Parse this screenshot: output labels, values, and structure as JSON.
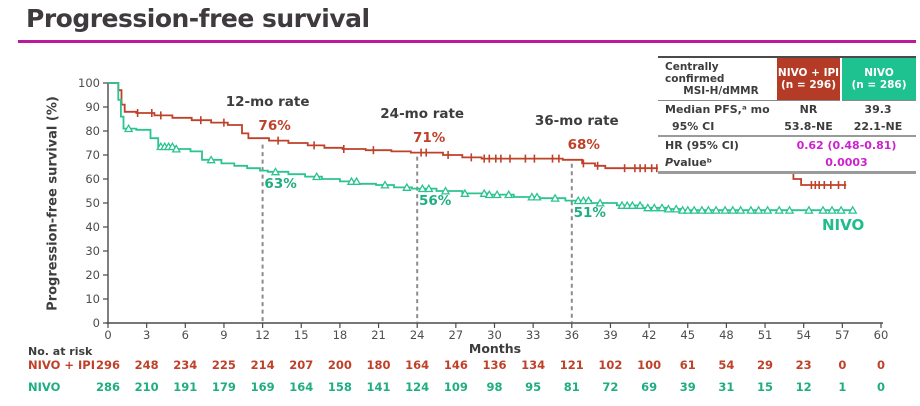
{
  "title": "Progression-free survival",
  "colors": {
    "nivo_ipi_curve": "#bf4129",
    "nivo_curve": "#2cc392",
    "nivo_ipi_header_bg": "#b43b25",
    "nivo_header_bg": "#1ec291",
    "magenta_accent": "#cc22cc",
    "title_underline": "#ba1a9b",
    "dashed_line": "#8c8c8c"
  },
  "stats_table": {
    "header": {
      "label1": "Centrally confirmed",
      "label2": "MSI-H/dMMR",
      "col1_line1": "NIVO + IPI",
      "col1_line2": "(n = 296)",
      "col2_line1": "NIVO",
      "col2_line2": "(n = 286)"
    },
    "rows": [
      {
        "label": "Median PFS,ᵃ mo",
        "v1": "NR",
        "v2": "39.3"
      },
      {
        "label": "95% CI",
        "v1": "53.8-NE",
        "v2": "22.1-NE"
      }
    ],
    "hr": {
      "label": "HR (95% CI)",
      "value": "0.62 (0.48-0.81)"
    },
    "p": {
      "label_italic": "P",
      "label_rest": " valueᵇ",
      "value": "0.0003"
    }
  },
  "curve_labels": {
    "nivo_ipi": "NIVO + IPI",
    "nivo": "NIVO"
  },
  "at_risk": {
    "title": "No. at risk",
    "rows": [
      {
        "name": "NIVO + IPI",
        "color": "#bf4129",
        "counts": [
          296,
          248,
          234,
          225,
          214,
          207,
          200,
          180,
          164,
          146,
          136,
          134,
          121,
          102,
          100,
          61,
          54,
          29,
          23,
          0,
          0
        ]
      },
      {
        "name": "NIVO",
        "color": "#1fae81",
        "counts": [
          286,
          210,
          191,
          179,
          169,
          164,
          158,
          141,
          124,
          109,
          98,
          95,
          81,
          72,
          69,
          39,
          31,
          15,
          12,
          1,
          0
        ]
      }
    ]
  },
  "chart_data": {
    "type": "line",
    "subtype": "kaplan-meier-step",
    "title": "Progression-free survival",
    "xlabel": "Months",
    "ylabel": "Progression-free survival (%)",
    "xlim": [
      0,
      60
    ],
    "ylim": [
      0,
      100
    ],
    "xticks": [
      0,
      3,
      6,
      9,
      12,
      15,
      18,
      21,
      24,
      27,
      30,
      33,
      36,
      39,
      42,
      45,
      48,
      51,
      54,
      57,
      60
    ],
    "yticks": [
      0,
      10,
      20,
      30,
      40,
      50,
      60,
      70,
      80,
      90,
      100
    ],
    "grid": false,
    "milestones": [
      {
        "month": 12,
        "label": "12-mo rate",
        "nivo_ipi_rate": "76%",
        "nivo_rate": "63%"
      },
      {
        "month": 24,
        "label": "24-mo rate",
        "nivo_ipi_rate": "71%",
        "nivo_rate": "56%"
      },
      {
        "month": 36,
        "label": "36-mo rate",
        "nivo_ipi_rate": "68%",
        "nivo_rate": "51%"
      }
    ],
    "series": [
      {
        "name": "NIVO + IPI",
        "color": "#bf4129",
        "censor_style": "tick",
        "steps": [
          [
            0,
            100
          ],
          [
            0.8,
            100
          ],
          [
            0.8,
            97
          ],
          [
            1.05,
            97
          ],
          [
            1.05,
            91
          ],
          [
            1.3,
            91
          ],
          [
            1.3,
            88
          ],
          [
            2.2,
            88
          ],
          [
            2.2,
            87.5
          ],
          [
            3.6,
            87.5
          ],
          [
            3.6,
            86.5
          ],
          [
            5,
            86.5
          ],
          [
            5,
            85.5
          ],
          [
            6.5,
            85.5
          ],
          [
            6.5,
            84.5
          ],
          [
            8,
            84.5
          ],
          [
            8,
            83.5
          ],
          [
            9.3,
            83.5
          ],
          [
            9.3,
            82.5
          ],
          [
            10.4,
            82.5
          ],
          [
            10.4,
            79
          ],
          [
            10.9,
            79
          ],
          [
            10.9,
            77
          ],
          [
            12.5,
            77
          ],
          [
            12.5,
            76
          ],
          [
            14,
            76
          ],
          [
            14,
            75
          ],
          [
            15.5,
            75
          ],
          [
            15.5,
            74
          ],
          [
            16.8,
            74
          ],
          [
            16.8,
            73
          ],
          [
            18.2,
            73
          ],
          [
            18.2,
            72.5
          ],
          [
            20,
            72.5
          ],
          [
            20,
            72
          ],
          [
            22,
            72
          ],
          [
            22,
            71.5
          ],
          [
            23.5,
            71.5
          ],
          [
            23.5,
            71
          ],
          [
            26,
            71
          ],
          [
            26,
            70
          ],
          [
            27.5,
            70
          ],
          [
            27.5,
            69
          ],
          [
            29,
            69
          ],
          [
            29,
            68.5
          ],
          [
            35.3,
            68.5
          ],
          [
            35.3,
            68
          ],
          [
            36.8,
            68
          ],
          [
            36.8,
            66.5
          ],
          [
            37.8,
            66.5
          ],
          [
            37.8,
            65.5
          ],
          [
            38.6,
            65.5
          ],
          [
            38.6,
            64.5
          ],
          [
            52.6,
            64.5
          ],
          [
            52.6,
            62.5
          ],
          [
            53.2,
            62.5
          ],
          [
            53.2,
            60
          ],
          [
            53.8,
            60
          ],
          [
            53.8,
            57.5
          ],
          [
            57.3,
            57.5
          ]
        ],
        "censor_x": [
          2.3,
          3.4,
          4.1,
          7.2,
          9.0,
          13.2,
          16.0,
          18.3,
          20.6,
          24.3,
          24.7,
          26.4,
          28.2,
          29.2,
          29.6,
          30.1,
          30.5,
          31.2,
          32.4,
          33.1,
          34.5,
          35.0,
          36.9,
          38.0,
          40.1,
          40.9,
          41.3,
          41.7,
          42.2,
          42.6,
          43.3,
          44.5,
          46.1,
          46.5,
          47.0,
          48.2,
          49.5,
          50.1,
          50.6,
          51.8,
          54.6,
          54.9,
          55.2,
          55.6,
          56.1,
          56.7,
          57.2
        ]
      },
      {
        "name": "NIVO",
        "color": "#2cc392",
        "censor_style": "triangle",
        "steps": [
          [
            0,
            100
          ],
          [
            0.8,
            100
          ],
          [
            0.8,
            93
          ],
          [
            1.0,
            93
          ],
          [
            1.0,
            86
          ],
          [
            1.2,
            86
          ],
          [
            1.2,
            81
          ],
          [
            2.2,
            81
          ],
          [
            2.2,
            80.5
          ],
          [
            3.3,
            80.5
          ],
          [
            3.3,
            77
          ],
          [
            3.9,
            77
          ],
          [
            3.9,
            73.5
          ],
          [
            5.2,
            73.5
          ],
          [
            5.2,
            72.5
          ],
          [
            6.4,
            72.5
          ],
          [
            6.4,
            71.5
          ],
          [
            7.3,
            71.5
          ],
          [
            7.3,
            68
          ],
          [
            8.8,
            68
          ],
          [
            8.8,
            66.5
          ],
          [
            9.8,
            66.5
          ],
          [
            9.8,
            65.5
          ],
          [
            10.8,
            65.5
          ],
          [
            10.8,
            64.5
          ],
          [
            11.8,
            64.5
          ],
          [
            11.8,
            63.5
          ],
          [
            12.4,
            63.5
          ],
          [
            12.4,
            63
          ],
          [
            14,
            63
          ],
          [
            14,
            62
          ],
          [
            15.3,
            62
          ],
          [
            15.3,
            61
          ],
          [
            16.6,
            61
          ],
          [
            16.6,
            60
          ],
          [
            18,
            60
          ],
          [
            18,
            59
          ],
          [
            19.4,
            59
          ],
          [
            19.4,
            58
          ],
          [
            20.8,
            58
          ],
          [
            20.8,
            57.5
          ],
          [
            22.2,
            57.5
          ],
          [
            22.2,
            56.5
          ],
          [
            23.6,
            56.5
          ],
          [
            23.6,
            56
          ],
          [
            25.5,
            56
          ],
          [
            25.5,
            55
          ],
          [
            27.5,
            55
          ],
          [
            27.5,
            54
          ],
          [
            29.5,
            54
          ],
          [
            29.5,
            53.5
          ],
          [
            31.5,
            53.5
          ],
          [
            31.5,
            52.5
          ],
          [
            33.5,
            52.5
          ],
          [
            33.5,
            52
          ],
          [
            35.5,
            52
          ],
          [
            35.5,
            51
          ],
          [
            37.5,
            51
          ],
          [
            37.5,
            50
          ],
          [
            39.5,
            50
          ],
          [
            39.5,
            49
          ],
          [
            41.5,
            49
          ],
          [
            41.5,
            48
          ],
          [
            43.5,
            48
          ],
          [
            43.5,
            47.5
          ],
          [
            44.5,
            47.5
          ],
          [
            44.5,
            47
          ],
          [
            58,
            47
          ]
        ],
        "censor_x": [
          1.6,
          4.1,
          4.4,
          4.7,
          5.0,
          5.3,
          8.0,
          13.0,
          16.2,
          18.9,
          19.3,
          21.5,
          23.2,
          24.4,
          24.9,
          26.2,
          27.7,
          29.2,
          29.6,
          30.2,
          31.1,
          32.9,
          33.3,
          34.7,
          36.5,
          36.9,
          37.3,
          38.2,
          39.9,
          40.3,
          40.7,
          41.3,
          41.9,
          42.4,
          43.0,
          43.5,
          44.1,
          44.6,
          45.0,
          45.5,
          46.1,
          46.6,
          47.2,
          47.9,
          48.5,
          49.1,
          49.9,
          50.5,
          51.2,
          52.1,
          52.9,
          54.4,
          55.5,
          56.2,
          56.9,
          57.8
        ]
      }
    ]
  }
}
